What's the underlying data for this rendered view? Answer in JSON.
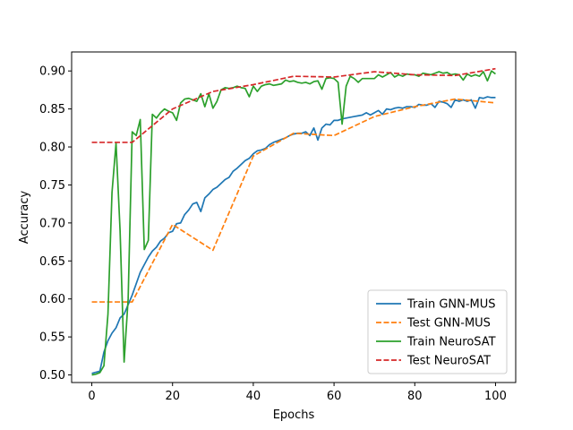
{
  "chart_data": {
    "type": "line",
    "title": "",
    "xlabel": "Epochs",
    "ylabel": "Accuracy",
    "xlim": [
      -5,
      105
    ],
    "ylim": [
      0.49,
      0.925
    ],
    "xticks": [
      0,
      20,
      40,
      60,
      80,
      100
    ],
    "yticks": [
      0.5,
      0.55,
      0.6,
      0.65,
      0.7,
      0.75,
      0.8,
      0.85,
      0.9
    ],
    "ytick_labels": [
      "0.50",
      "0.55",
      "0.60",
      "0.65",
      "0.70",
      "0.75",
      "0.80",
      "0.85",
      "0.90"
    ],
    "grid": false,
    "legend_position": "lower-right",
    "series": [
      {
        "name": "Train GNN-MUS",
        "color": "#1f77b4",
        "style": "solid",
        "x": [
          0,
          2,
          3,
          4,
          5,
          6,
          7,
          8,
          10,
          12,
          14,
          15,
          16,
          17,
          18,
          19,
          20,
          21,
          22,
          23,
          24,
          25,
          26,
          27,
          28,
          29,
          30,
          31,
          32,
          33,
          34,
          35,
          36,
          37,
          38,
          39,
          40,
          41,
          42,
          43,
          44,
          45,
          46,
          47,
          48,
          49,
          50,
          51,
          52,
          53,
          54,
          55,
          56,
          57,
          58,
          59,
          60,
          61,
          62,
          63,
          64,
          65,
          66,
          67,
          68,
          69,
          70,
          71,
          72,
          73,
          74,
          75,
          76,
          77,
          78,
          79,
          80,
          81,
          82,
          83,
          84,
          85,
          86,
          87,
          88,
          89,
          90,
          91,
          92,
          93,
          94,
          95,
          96,
          97,
          98,
          99,
          100
        ],
        "y": [
          0.502,
          0.505,
          0.53,
          0.545,
          0.555,
          0.562,
          0.575,
          0.58,
          0.605,
          0.635,
          0.655,
          0.663,
          0.668,
          0.676,
          0.68,
          0.687,
          0.689,
          0.699,
          0.7,
          0.711,
          0.717,
          0.725,
          0.727,
          0.715,
          0.733,
          0.738,
          0.744,
          0.747,
          0.752,
          0.757,
          0.76,
          0.768,
          0.772,
          0.777,
          0.782,
          0.785,
          0.791,
          0.795,
          0.796,
          0.798,
          0.803,
          0.806,
          0.808,
          0.81,
          0.812,
          0.815,
          0.817,
          0.818,
          0.818,
          0.82,
          0.815,
          0.825,
          0.809,
          0.825,
          0.83,
          0.829,
          0.835,
          0.835,
          0.837,
          0.838,
          0.839,
          0.84,
          0.841,
          0.842,
          0.845,
          0.842,
          0.845,
          0.848,
          0.843,
          0.85,
          0.849,
          0.851,
          0.852,
          0.851,
          0.853,
          0.853,
          0.852,
          0.856,
          0.855,
          0.855,
          0.857,
          0.852,
          0.86,
          0.859,
          0.857,
          0.852,
          0.862,
          0.86,
          0.862,
          0.86,
          0.862,
          0.851,
          0.865,
          0.864,
          0.866,
          0.865,
          0.865
        ]
      },
      {
        "name": "Test GNN-MUS",
        "color": "#ff7f0e",
        "style": "dashed",
        "x": [
          0,
          10,
          20,
          30,
          40,
          50,
          60,
          70,
          80,
          90,
          100
        ],
        "y": [
          0.596,
          0.596,
          0.698,
          0.664,
          0.788,
          0.818,
          0.815,
          0.84,
          0.853,
          0.863,
          0.858
        ]
      },
      {
        "name": "Train NeuroSAT",
        "color": "#2ca02c",
        "style": "solid",
        "x": [
          0,
          1,
          2,
          3,
          4,
          5,
          6,
          7,
          8,
          9,
          10,
          11,
          12,
          13,
          14,
          15,
          16,
          17,
          18,
          19,
          20,
          21,
          22,
          23,
          24,
          25,
          26,
          27,
          28,
          29,
          30,
          31,
          32,
          33,
          34,
          35,
          36,
          37,
          38,
          39,
          40,
          41,
          42,
          43,
          44,
          45,
          46,
          47,
          48,
          49,
          50,
          51,
          52,
          53,
          54,
          55,
          56,
          57,
          58,
          59,
          60,
          61,
          62,
          63,
          64,
          65,
          66,
          67,
          68,
          69,
          70,
          71,
          72,
          73,
          74,
          75,
          76,
          77,
          78,
          79,
          80,
          81,
          82,
          83,
          84,
          85,
          86,
          87,
          88,
          89,
          90,
          91,
          92,
          93,
          94,
          95,
          96,
          97,
          98,
          99,
          100
        ],
        "y": [
          0.5,
          0.501,
          0.503,
          0.512,
          0.58,
          0.74,
          0.805,
          0.69,
          0.517,
          0.6,
          0.82,
          0.815,
          0.836,
          0.665,
          0.677,
          0.843,
          0.838,
          0.845,
          0.85,
          0.847,
          0.845,
          0.835,
          0.858,
          0.863,
          0.864,
          0.862,
          0.86,
          0.87,
          0.853,
          0.87,
          0.851,
          0.86,
          0.875,
          0.878,
          0.877,
          0.878,
          0.88,
          0.878,
          0.877,
          0.866,
          0.88,
          0.873,
          0.88,
          0.882,
          0.883,
          0.881,
          0.882,
          0.883,
          0.888,
          0.886,
          0.887,
          0.885,
          0.884,
          0.885,
          0.883,
          0.886,
          0.887,
          0.876,
          0.89,
          0.891,
          0.89,
          0.885,
          0.83,
          0.88,
          0.893,
          0.89,
          0.885,
          0.89,
          0.89,
          0.89,
          0.89,
          0.895,
          0.892,
          0.895,
          0.898,
          0.892,
          0.895,
          0.893,
          0.896,
          0.895,
          0.895,
          0.893,
          0.897,
          0.896,
          0.895,
          0.897,
          0.899,
          0.897,
          0.898,
          0.895,
          0.896,
          0.895,
          0.888,
          0.896,
          0.893,
          0.895,
          0.893,
          0.899,
          0.887,
          0.9,
          0.896
        ]
      },
      {
        "name": "Test NeuroSAT",
        "color": "#d62728",
        "style": "dashed",
        "x": [
          0,
          10,
          20,
          30,
          40,
          50,
          60,
          70,
          80,
          90,
          100
        ],
        "y": [
          0.806,
          0.806,
          0.85,
          0.873,
          0.882,
          0.893,
          0.892,
          0.899,
          0.895,
          0.894,
          0.903
        ]
      }
    ]
  }
}
